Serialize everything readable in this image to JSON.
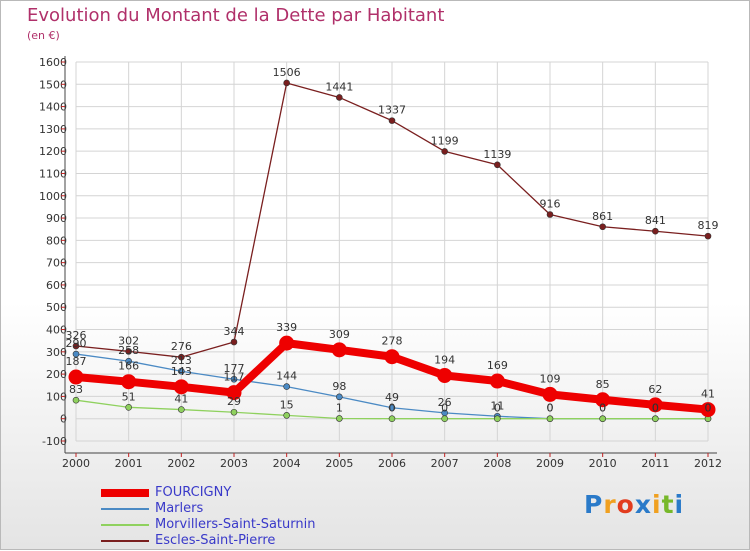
{
  "chart_data": {
    "type": "line",
    "title": "Evolution du Montant de la Dette par Habitant",
    "subtitle": "(en €)",
    "xlabel": "",
    "ylabel": "",
    "categories": [
      "2000",
      "2001",
      "2002",
      "2003",
      "2004",
      "2005",
      "2006",
      "2007",
      "2008",
      "2009",
      "2010",
      "2011",
      "2012"
    ],
    "ylim": [
      -100,
      1600
    ],
    "yticks": [
      -100,
      0,
      100,
      200,
      300,
      400,
      500,
      600,
      700,
      800,
      900,
      1000,
      1100,
      1200,
      1300,
      1400,
      1500,
      1600
    ],
    "series": [
      {
        "name": "Escles-Saint-Pierre",
        "color": "#7a1f1f",
        "values": [
          326,
          302,
          276,
          344,
          1506,
          1441,
          1337,
          1199,
          1139,
          916,
          861,
          841,
          819
        ]
      },
      {
        "name": "Marlers",
        "color": "#4b8ac4",
        "values": [
          290,
          258,
          213,
          177,
          144,
          98,
          49,
          26,
          11,
          0,
          0,
          0,
          0
        ]
      },
      {
        "name": "Morvillers-Saint-Saturnin",
        "color": "#8fd15e",
        "values": [
          83,
          51,
          41,
          29,
          15,
          1,
          0,
          0,
          0,
          0,
          0,
          0,
          0
        ]
      },
      {
        "name": "FOURCIGNY",
        "color": "#ee0000",
        "values": [
          187,
          166,
          143,
          117,
          339,
          309,
          278,
          194,
          169,
          109,
          85,
          62,
          41
        ]
      }
    ]
  },
  "legend": {
    "items": [
      {
        "label": "FOURCIGNY",
        "color": "#ee0000"
      },
      {
        "label": "Marlers",
        "color": "#4b8ac4"
      },
      {
        "label": "Morvillers-Saint-Saturnin",
        "color": "#8fd15e"
      },
      {
        "label": "Escles-Saint-Pierre",
        "color": "#7a1f1f"
      }
    ]
  },
  "logo": {
    "letters": [
      "P",
      "r",
      "o",
      "x",
      "i",
      "t",
      "i"
    ],
    "colors": [
      "#2a7ac9",
      "#f0a020",
      "#e23c1e",
      "#2a7ac9",
      "#f0a020",
      "#77b82a",
      "#2a7ac9"
    ]
  }
}
